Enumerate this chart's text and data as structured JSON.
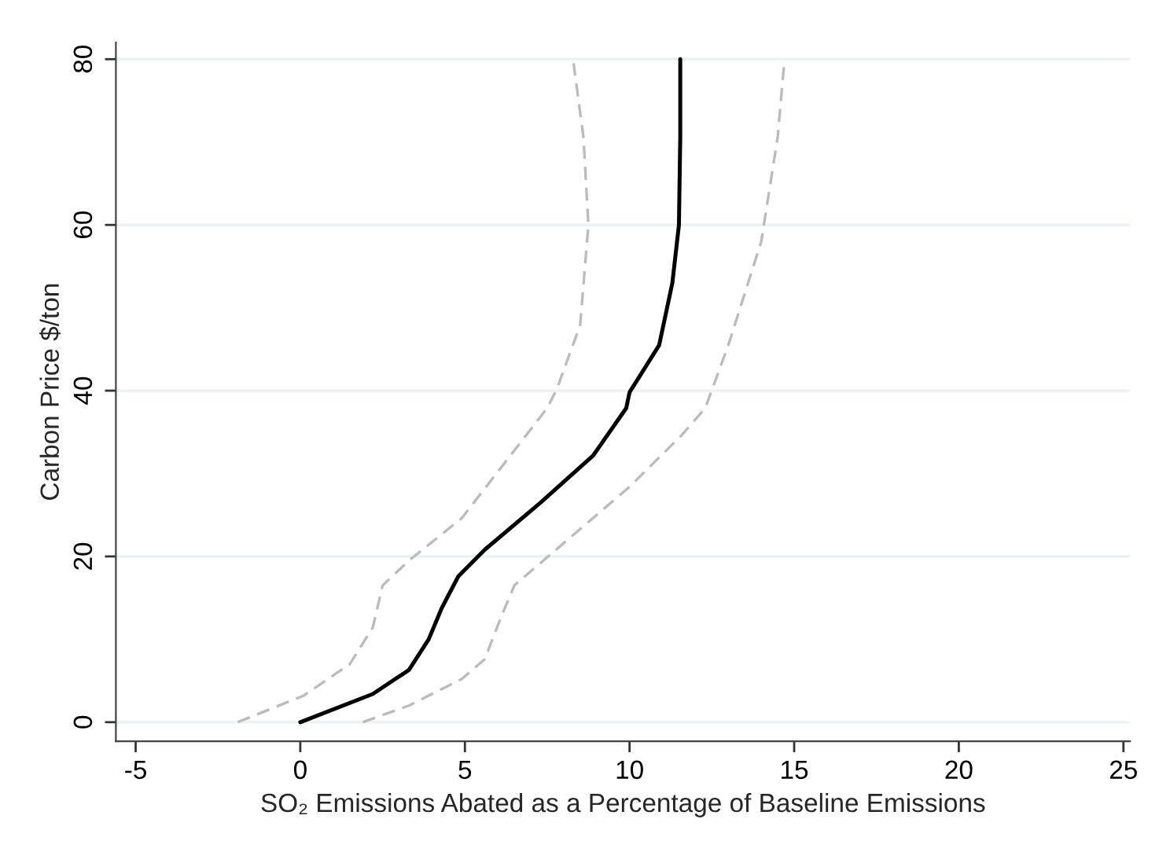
{
  "chart_data": {
    "type": "line",
    "xlabel": "SO₂ Emissions Abated as a Percentage of Baseline Emissions",
    "ylabel": "Carbon Price $/ton",
    "xlim": [
      -5.6,
      25.2
    ],
    "xticks": [
      -5,
      0,
      5,
      10,
      15,
      20,
      25
    ],
    "ylim": [
      -2.3,
      82
    ],
    "yticks": [
      0,
      20,
      40,
      60,
      80
    ],
    "grid": "y",
    "legend": false,
    "series": [
      {
        "color": "#000000",
        "line_style": "solid",
        "x": [
          0,
          2.2,
          3.3,
          3.9,
          4.3,
          4.8,
          5.6,
          7.3,
          8.9,
          9.9,
          10.0,
          10.9,
          11.3,
          11.5,
          11.54,
          11.54
        ],
        "values": [
          0,
          3.4,
          6.3,
          10.0,
          13.8,
          17.6,
          20.8,
          26.5,
          32.2,
          37.9,
          39.8,
          45.5,
          53.0,
          60,
          70.6,
          80
        ]
      },
      {
        "color": "#bbbbbb",
        "line_style": "dashed",
        "x": [
          -1.9,
          0.1,
          1.5,
          2.2,
          2.5,
          3.3,
          4.9,
          7.5,
          7.8,
          8.5,
          8.75,
          8.6,
          8.3
        ],
        "values": [
          0,
          3.2,
          7,
          11.4,
          16.5,
          19.5,
          24.6,
          37.9,
          40.3,
          47.9,
          60,
          70.6,
          79.5
        ]
      },
      {
        "color": "#bbbbbb",
        "line_style": "dashed",
        "x": [
          1.9,
          3.3,
          4.9,
          5.6,
          6.1,
          6.5,
          7.5,
          10.0,
          11.6,
          12.3,
          13.0,
          14.0,
          14.5,
          14.7
        ],
        "values": [
          0,
          2.0,
          5.2,
          7.6,
          12.7,
          16.5,
          19.9,
          28.4,
          34.7,
          37.9,
          45.5,
          58,
          70.6,
          79.7
        ]
      }
    ]
  }
}
